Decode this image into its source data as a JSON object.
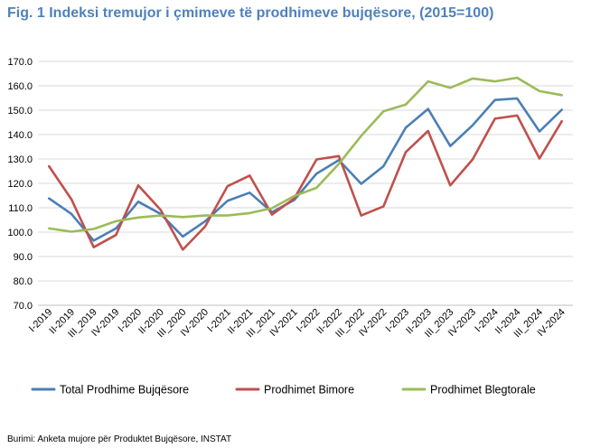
{
  "title": "Fig. 1 Indeksi tremujor i çmimeve të prodhimeve bujqësore, (2015=100)",
  "source": "Burimi: Anketa mujore për Produktet Bujqësore, INSTAT",
  "chart_data": {
    "type": "line",
    "title": "Fig. 1 Indeksi tremujor i çmimeve të prodhimeve bujqësore, (2015=100)",
    "xlabel": "",
    "ylabel": "",
    "ylim": [
      70,
      170
    ],
    "ytick_step": 10,
    "ytick_labels": [
      "70.0",
      "80.0",
      "90.0",
      "100.0",
      "110.0",
      "120.0",
      "130.0",
      "140.0",
      "150.0",
      "160.0",
      "170.0"
    ],
    "grid": true,
    "legend": "bottom",
    "categories": [
      "I-2019",
      "II-2019",
      "III_2019",
      "IV-2019",
      "I-2020",
      "II-2020",
      "III_2020",
      "IV-2020",
      "I-2021",
      "II-2021",
      "III_2021",
      "IV-2021",
      "I-2022",
      "II-2022",
      "III_2022",
      "IV-2022",
      "I-2023",
      "II-2023",
      "III_2023",
      "IV-2023",
      "I-2024",
      "II-2024",
      "III_2024",
      "IV-2024"
    ],
    "series": [
      {
        "name": "Total Prodhime Bujqësore",
        "color": "#4a7fb5",
        "values": [
          113.8,
          107.5,
          96.5,
          101.5,
          112.5,
          107.5,
          98.2,
          104.5,
          112.8,
          116.2,
          108.2,
          113.2,
          124.0,
          129.5,
          119.8,
          127.0,
          142.8,
          150.5,
          135.3,
          143.8,
          154.2,
          154.8,
          141.3,
          150.2
        ]
      },
      {
        "name": "Prodhimet Bimore",
        "color": "#c0504d",
        "values": [
          127.0,
          113.5,
          93.8,
          98.8,
          119.2,
          109.2,
          92.8,
          102.3,
          118.8,
          123.2,
          107.2,
          113.8,
          129.8,
          131.2,
          106.8,
          110.5,
          132.8,
          141.5,
          119.2,
          129.8,
          146.5,
          147.8,
          130.2,
          145.5
        ]
      },
      {
        "name": "Prodhimet Blegtorale",
        "color": "#9bbb59",
        "values": [
          101.5,
          100.2,
          101.3,
          104.5,
          106.0,
          106.8,
          106.2,
          106.8,
          106.8,
          107.8,
          109.8,
          114.8,
          118.2,
          128.0,
          139.5,
          149.5,
          152.3,
          161.8,
          159.2,
          163.0,
          161.8,
          163.3,
          157.8,
          156.2
        ]
      }
    ]
  }
}
